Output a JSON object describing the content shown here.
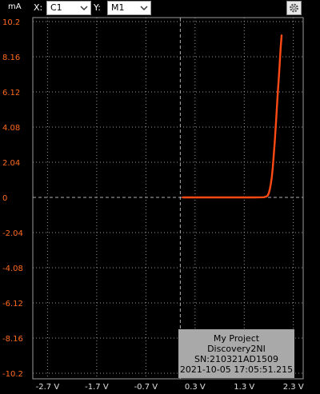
{
  "toolbar": {
    "unit": "mA",
    "x_label": "X:",
    "x_value": "C1",
    "y_label": "Y:",
    "y_value": "M1",
    "settings_icon": "gear-icon"
  },
  "info": {
    "line1": "My Project",
    "line2": "Discovery2NI",
    "line3": "SN:210321AD1509",
    "line4": "2021-10-05 17:05:51.215"
  },
  "colors": {
    "background": "#000000",
    "grid": "#9a9a9a",
    "trace": "#ff4a14",
    "y_ticks": "#ff6a1f",
    "x_ticks": "#e0e0e0"
  },
  "chart_data": {
    "type": "line",
    "title": "",
    "xlabel": "",
    "ylabel": "mA",
    "xlim": [
      -3.0,
      2.5
    ],
    "ylim": [
      -10.2,
      10.2
    ],
    "x_ticks": [
      -2.7,
      -1.7,
      -0.7,
      0.3,
      1.3,
      2.3
    ],
    "x_tick_labels": [
      "-2.7 V",
      "-1.7 V",
      "-0.7 V",
      "0.3 V",
      "1.3 V",
      "2.3 V"
    ],
    "y_ticks": [
      10.2,
      8.16,
      6.12,
      4.08,
      2.04,
      0,
      -2.04,
      -4.08,
      -6.12,
      -8.16,
      -10.2
    ],
    "y_tick_labels": [
      "10.2",
      "8.16",
      "6.12",
      "4.08",
      "2.04",
      "0",
      "-2.04",
      "-4.08",
      "-6.12",
      "-8.16",
      "-10.2"
    ],
    "grid": true,
    "series": [
      {
        "x": [
          0.05,
          0.4,
          0.8,
          1.2,
          1.5,
          1.7,
          1.75,
          1.78,
          1.8,
          1.82,
          1.84,
          1.86,
          1.88,
          1.9,
          1.92,
          1.95,
          1.98,
          2.01,
          2.04,
          2.06
        ],
        "values": [
          0,
          0,
          0,
          0,
          0,
          0.01,
          0.05,
          0.12,
          0.25,
          0.45,
          0.75,
          1.15,
          1.7,
          2.4,
          3.2,
          4.5,
          5.9,
          7.2,
          8.6,
          9.4
        ]
      }
    ]
  }
}
